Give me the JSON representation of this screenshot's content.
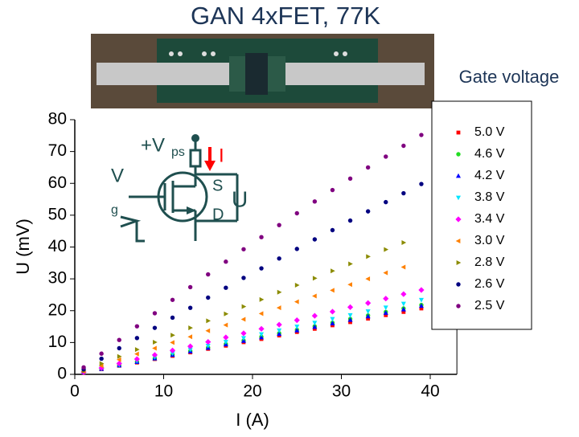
{
  "chart_data": {
    "type": "scatter",
    "title": "GAN 4xFET, 77K",
    "legend_title": "Gate voltage",
    "xlabel": "I (A)",
    "ylabel": "U (mV)",
    "inset_labels": [
      "+V",
      "ps",
      "I",
      "S",
      "D",
      "U",
      "V",
      "g"
    ],
    "xlim": [
      0,
      43
    ],
    "ylim": [
      0,
      80
    ],
    "xticks": [
      0,
      10,
      20,
      30,
      40
    ],
    "yticks": [
      0,
      10,
      20,
      30,
      40,
      50,
      60,
      70,
      80
    ],
    "grid": false,
    "legend": "right",
    "x": [
      1,
      3,
      5,
      7,
      9,
      11,
      13,
      15,
      17,
      19,
      21,
      23,
      25,
      27,
      29,
      31,
      33,
      35,
      37,
      39
    ],
    "series": [
      {
        "name": "5.0 V",
        "color": "#ff0000",
        "marker": "square",
        "values": [
          0.5,
          1.6,
          2.7,
          3.7,
          4.8,
          5.8,
          6.9,
          8.0,
          9.0,
          10.1,
          11.1,
          12.2,
          13.3,
          14.3,
          15.4,
          16.4,
          17.5,
          18.6,
          19.6,
          20.7
        ]
      },
      {
        "name": "4.6 V",
        "color": "#22dd22",
        "marker": "circle",
        "values": [
          0.6,
          1.7,
          2.8,
          3.9,
          5.0,
          6.2,
          7.3,
          8.4,
          9.5,
          10.6,
          11.8,
          12.9,
          14.0,
          15.1,
          16.2,
          17.4,
          18.5,
          19.6,
          20.7,
          21.8
        ]
      },
      {
        "name": "4.2 V",
        "color": "#0000ff",
        "marker": "triangle-up",
        "values": [
          0.6,
          1.7,
          2.8,
          3.9,
          5.0,
          6.1,
          7.2,
          8.3,
          9.4,
          10.5,
          11.6,
          12.7,
          13.8,
          14.9,
          16.0,
          17.1,
          18.2,
          19.3,
          20.4,
          21.5
        ]
      },
      {
        "name": "3.8 V",
        "color": "#00e5ff",
        "marker": "triangle-down",
        "values": [
          0.6,
          1.8,
          3.0,
          4.2,
          5.4,
          6.6,
          7.8,
          9.0,
          10.2,
          11.4,
          12.6,
          13.8,
          15.0,
          16.2,
          17.4,
          18.6,
          19.8,
          21.0,
          22.2,
          23.4
        ]
      },
      {
        "name": "3.4 V",
        "color": "#ff00ff",
        "marker": "diamond",
        "values": [
          0.7,
          2.0,
          3.4,
          4.8,
          6.1,
          7.5,
          8.8,
          10.2,
          11.6,
          12.9,
          14.3,
          15.6,
          17.0,
          18.4,
          19.7,
          21.1,
          22.4,
          23.8,
          25.2,
          26.5
        ]
      },
      {
        "name": "3.0 V",
        "color": "#ff8000",
        "marker": "triangle-left",
        "values": [
          0.9,
          2.7,
          4.6,
          6.4,
          8.2,
          10.0,
          11.8,
          13.7,
          15.5,
          17.3,
          19.1,
          20.9,
          22.8,
          24.6,
          26.4,
          28.2,
          30.0,
          31.9,
          33.7,
          null
        ]
      },
      {
        "name": "2.8 V",
        "color": "#8b8b00",
        "marker": "triangle-right",
        "values": [
          1.1,
          3.4,
          5.6,
          7.8,
          10.1,
          12.3,
          14.6,
          16.8,
          19.0,
          21.3,
          23.5,
          25.8,
          28.0,
          30.2,
          32.5,
          34.7,
          37.0,
          39.2,
          41.4,
          null
        ]
      },
      {
        "name": "2.6 V",
        "color": "#000080",
        "marker": "circle",
        "values": [
          1.6,
          4.9,
          8.2,
          11.4,
          14.6,
          17.8,
          20.9,
          24.1,
          27.2,
          30.3,
          33.3,
          36.4,
          39.4,
          42.4,
          45.3,
          48.3,
          51.2,
          54.1,
          56.9,
          59.8
        ]
      },
      {
        "name": "2.5 V",
        "color": "#800080",
        "marker": "circle",
        "values": [
          2.2,
          6.5,
          10.8,
          15.1,
          19.2,
          23.4,
          27.4,
          31.4,
          35.4,
          39.3,
          43.1,
          46.9,
          50.6,
          54.3,
          57.9,
          61.5,
          65.0,
          68.4,
          71.8,
          75.2
        ]
      }
    ]
  }
}
